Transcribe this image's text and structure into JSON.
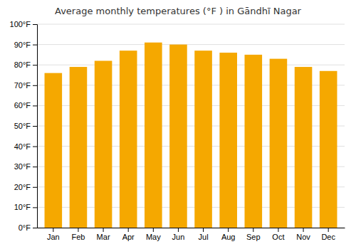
{
  "chart_data": {
    "type": "bar",
    "title": "Average monthly temperatures (°F ) in Gāndhī Nagar",
    "categories": [
      "Jan",
      "Feb",
      "Mar",
      "Apr",
      "May",
      "Jun",
      "Jul",
      "Aug",
      "Sep",
      "Oct",
      "Nov",
      "Dec"
    ],
    "values": [
      76,
      79,
      82,
      87,
      91,
      90,
      87,
      86,
      85,
      83,
      79,
      77
    ],
    "color": "#F5A800",
    "ylim": [
      0,
      100
    ],
    "yticks": [
      {
        "value": 0,
        "label": "0°F"
      },
      {
        "value": 10,
        "label": "10°F"
      },
      {
        "value": 20,
        "label": "20°F"
      },
      {
        "value": 30,
        "label": "30°F"
      },
      {
        "value": 40,
        "label": "40°F"
      },
      {
        "value": 50,
        "label": "50°F"
      },
      {
        "value": 60,
        "label": "60°F"
      },
      {
        "value": 70,
        "label": "70°F"
      },
      {
        "value": 80,
        "label": "80°F"
      },
      {
        "value": 90,
        "label": "90°F"
      },
      {
        "value": 100,
        "label": "100°F"
      }
    ],
    "grid": true
  }
}
